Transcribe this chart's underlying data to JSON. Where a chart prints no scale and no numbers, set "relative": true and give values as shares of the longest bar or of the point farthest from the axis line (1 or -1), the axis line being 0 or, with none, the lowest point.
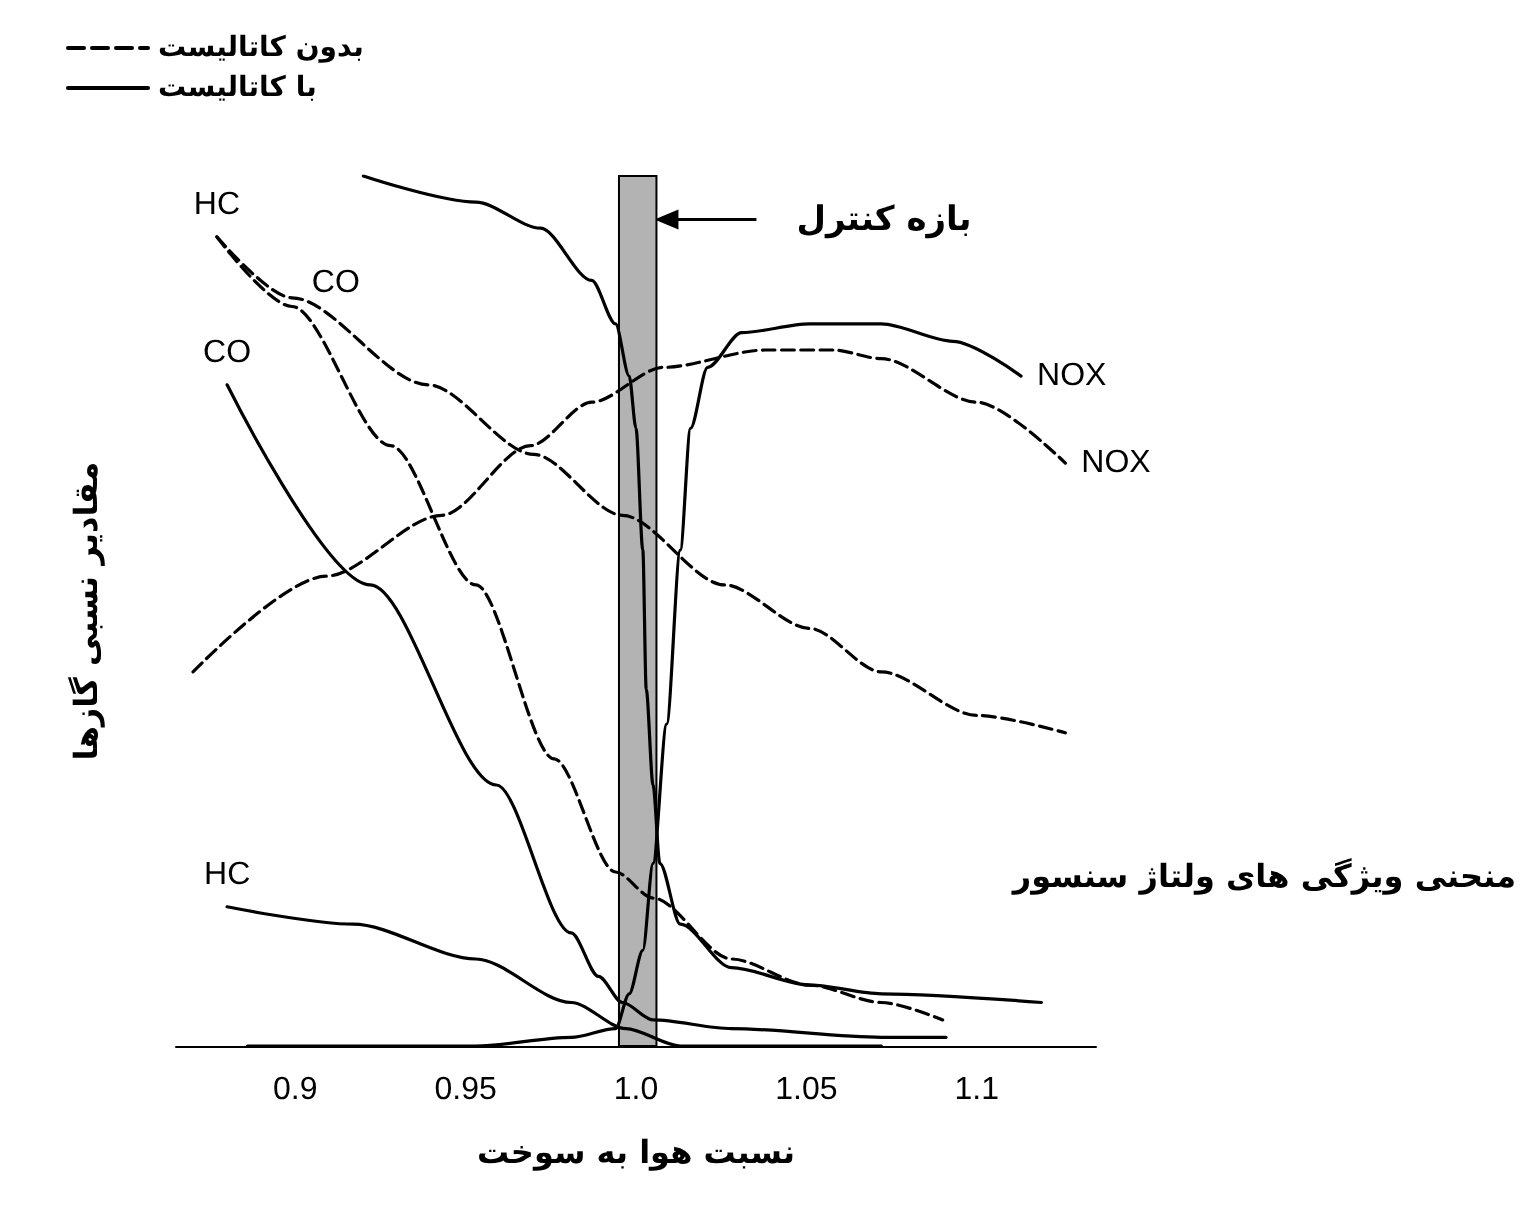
{
  "chart_data": {
    "type": "line",
    "relative": true,
    "xlabel": "نسبت هوا به سوخت",
    "ylabel": "مقادیر نسبی گازها",
    "xlim": [
      0.865,
      1.135
    ],
    "xticks": [
      0.9,
      0.95,
      {
        "value": 1,
        "label": "1.0"
      },
      1.05,
      1.1
    ],
    "legend": "top left",
    "series": [
      {
        "name": "بدون کاتالیست",
        "color": "#000000",
        "line_style": "dashed",
        "x": [
          0.877,
          0.899,
          0.928,
          0.953,
          0.976,
          0.994,
          1.005,
          1.028,
          1.051,
          1.072,
          1.09
        ],
        "values": [
          0.93,
          0.85,
          0.69,
          0.53,
          0.33,
          0.2,
          0.17,
          0.1,
          0.07,
          0.05,
          0.03
        ]
      },
      {
        "name": "با کاتالیست",
        "color": "#000000",
        "line_style": "solid",
        "x": [
          0.92,
          0.953,
          0.972,
          0.987,
          0.994,
          0.998,
          1.0,
          1.002,
          1.003,
          1.005,
          1.007,
          1.013,
          1.028,
          1.051,
          1.072,
          1.119
        ],
        "values": [
          1.0,
          0.97,
          0.94,
          0.88,
          0.83,
          0.77,
          0.71,
          0.57,
          0.41,
          0.3,
          0.21,
          0.14,
          0.09,
          0.07,
          0.06,
          0.05
        ]
      },
      {
        "color": "#000000",
        "line_style": "dashed",
        "x": [
          0.877,
          0.899,
          0.939,
          0.97,
          0.996,
          1.026,
          1.051,
          1.072,
          1.1,
          1.126
        ],
        "values": [
          0.93,
          0.86,
          0.76,
          0.68,
          0.61,
          0.53,
          0.48,
          0.43,
          0.38,
          0.36
        ]
      },
      {
        "color": "#000000",
        "line_style": "dashed",
        "x": [
          0.87,
          0.909,
          0.943,
          0.969,
          0.987,
          1.008,
          1.038,
          1.058,
          1.072,
          1.1,
          1.126
        ],
        "values": [
          0.43,
          0.54,
          0.61,
          0.69,
          0.74,
          0.78,
          0.8,
          0.8,
          0.79,
          0.74,
          0.67
        ]
      },
      {
        "color": "#000000",
        "line_style": "solid",
        "x": [
          0.886,
          0.953,
          0.981,
          0.994,
          0.998,
          1.002,
          1.005,
          1.009,
          1.013,
          1.016,
          1.021,
          1.031,
          1.051,
          1.072,
          1.093,
          1.113
        ],
        "values": [
          0.0,
          0.0,
          0.01,
          0.02,
          0.06,
          0.11,
          0.21,
          0.37,
          0.57,
          0.71,
          0.78,
          0.82,
          0.83,
          0.83,
          0.81,
          0.77
        ]
      },
      {
        "color": "#000000",
        "line_style": "solid",
        "x": [
          0.88,
          0.922,
          0.959,
          0.981,
          0.989,
          0.996,
          1.005,
          1.028,
          1.072,
          1.091
        ],
        "values": [
          0.76,
          0.53,
          0.3,
          0.13,
          0.08,
          0.05,
          0.03,
          0.02,
          0.01,
          0.01
        ]
      },
      {
        "color": "#000000",
        "line_style": "solid",
        "x": [
          0.88,
          0.917,
          0.953,
          0.981,
          0.997,
          1.013,
          1.072
        ],
        "values": [
          0.16,
          0.14,
          0.1,
          0.05,
          0.02,
          0.0,
          0.0
        ]
      }
    ],
    "bands": [
      {
        "axis": "x",
        "from": 0.995,
        "to": 1.006,
        "label": "بازه کنترل",
        "color": "#b3b3b3"
      }
    ],
    "annotations": [
      {
        "text": "HC",
        "x": 0.877,
        "y": 0.93
      },
      {
        "text": "CO",
        "x": 0.899,
        "y": 0.85
      },
      {
        "text": "CO",
        "x": 0.88,
        "y": 0.76
      },
      {
        "text": "HC",
        "x": 0.88,
        "y": 0.16
      },
      {
        "text": "NOX",
        "x": 1.113,
        "y": 0.77
      },
      {
        "text": "NOX",
        "x": 1.126,
        "y": 0.67
      },
      "منحنی ویژگی های ولتاژ سنسور"
    ]
  }
}
